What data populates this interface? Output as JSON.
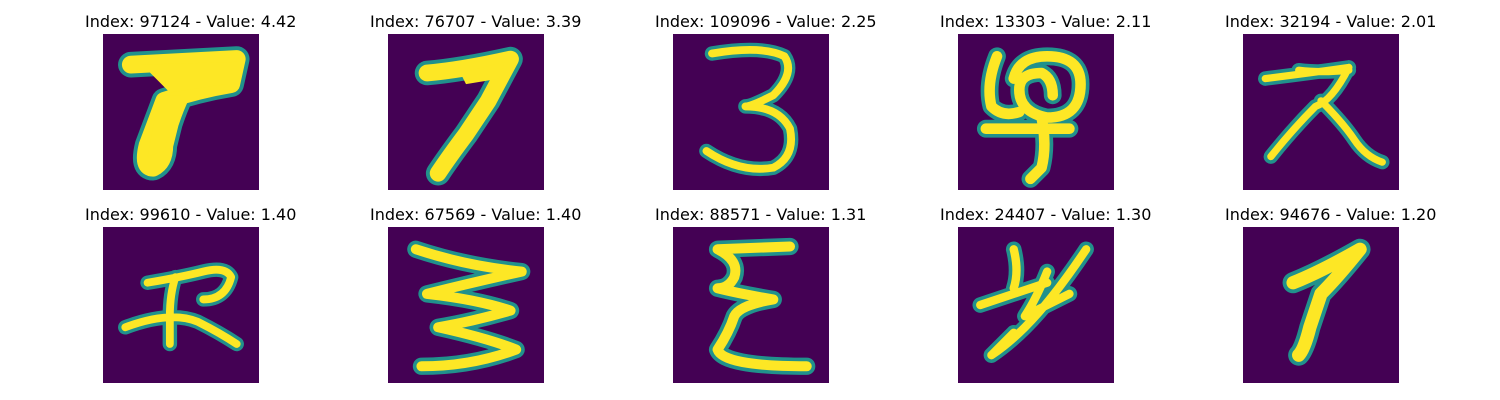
{
  "figure": {
    "panels": [
      {
        "title": "Index: 97124 - Value: 4.42",
        "glyph": "glyph-97124"
      },
      {
        "title": "Index: 76707 - Value: 3.39",
        "glyph": "glyph-76707"
      },
      {
        "title": "Index: 109096 - Value: 2.25",
        "glyph": "glyph-109096"
      },
      {
        "title": "Index: 13303 - Value: 2.11",
        "glyph": "glyph-13303"
      },
      {
        "title": "Index: 32194 - Value: 2.01",
        "glyph": "glyph-32194"
      },
      {
        "title": "Index: 99610 - Value: 1.40",
        "glyph": "glyph-99610"
      },
      {
        "title": "Index: 67569 - Value: 1.40",
        "glyph": "glyph-67569"
      },
      {
        "title": "Index: 88571 - Value: 1.31",
        "glyph": "glyph-88571"
      },
      {
        "title": "Index: 24407 - Value: 1.30",
        "glyph": "glyph-24407"
      },
      {
        "title": "Index: 94676 - Value: 1.20",
        "glyph": "glyph-94676"
      }
    ],
    "colors": {
      "background": "#440154",
      "stroke": "#fde725",
      "stroke_edge": "#21918c"
    }
  }
}
